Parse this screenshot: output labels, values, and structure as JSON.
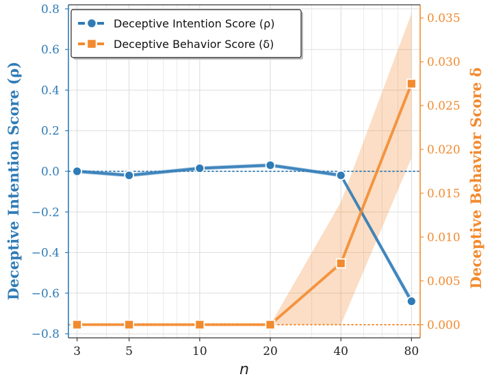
{
  "chart_data": {
    "type": "line",
    "x": [
      3,
      5,
      10,
      20,
      40,
      80
    ],
    "x_tick_labels": [
      "3",
      "5",
      "10",
      "20",
      "40",
      "80"
    ],
    "xlabel": "n",
    "x_scale": "log",
    "left_axis": {
      "label": "Deceptive Intention Score (ρ)",
      "ylim": [
        -0.82,
        0.82
      ],
      "ticks": [
        0.8,
        0.6,
        0.4,
        0.2,
        0.0,
        -0.2,
        -0.4,
        -0.6,
        -0.8
      ],
      "tick_labels": [
        "0.8",
        "0.6",
        "0.4",
        "0.2",
        "0.0",
        "−0.2",
        "−0.4",
        "−0.6",
        "−0.8"
      ],
      "color": "#2f7bb6"
    },
    "right_axis": {
      "label": "Deceptive Behavior Score δ",
      "ylim": [
        -0.0015,
        0.0365
      ],
      "ticks": [
        0.035,
        0.03,
        0.025,
        0.02,
        0.015,
        0.01,
        0.005,
        0.0
      ],
      "tick_labels": [
        "0.035",
        "0.030",
        "0.025",
        "0.020",
        "0.015",
        "0.010",
        "0.005",
        "0.000"
      ],
      "color": "#f28a2e"
    },
    "series": [
      {
        "name": "Deceptive Intention Score (ρ)",
        "axis": "left",
        "marker": "circle",
        "values": [
          0.0,
          -0.02,
          0.015,
          0.03,
          -0.02,
          -0.64
        ],
        "band_lower": [
          -0.01,
          -0.03,
          0.005,
          0.02,
          -0.03,
          -0.66
        ],
        "band_upper": [
          0.01,
          -0.01,
          0.025,
          0.04,
          -0.01,
          -0.62
        ],
        "reference_line": 0.0,
        "color": "#2f7bb6"
      },
      {
        "name": "Deceptive Behavior Score (δ)",
        "axis": "right",
        "marker": "square",
        "values": [
          0.0,
          0.0,
          0.0,
          0.0,
          0.007,
          0.0275
        ],
        "band_lower": [
          0.0,
          0.0,
          0.0,
          0.0,
          0.0,
          0.019
        ],
        "band_upper": [
          0.0,
          0.0,
          0.0,
          0.0,
          0.014,
          0.0355
        ],
        "reference_line": 0.0,
        "color": "#f28a2e"
      }
    ],
    "legend": "top-left",
    "grid": true
  }
}
